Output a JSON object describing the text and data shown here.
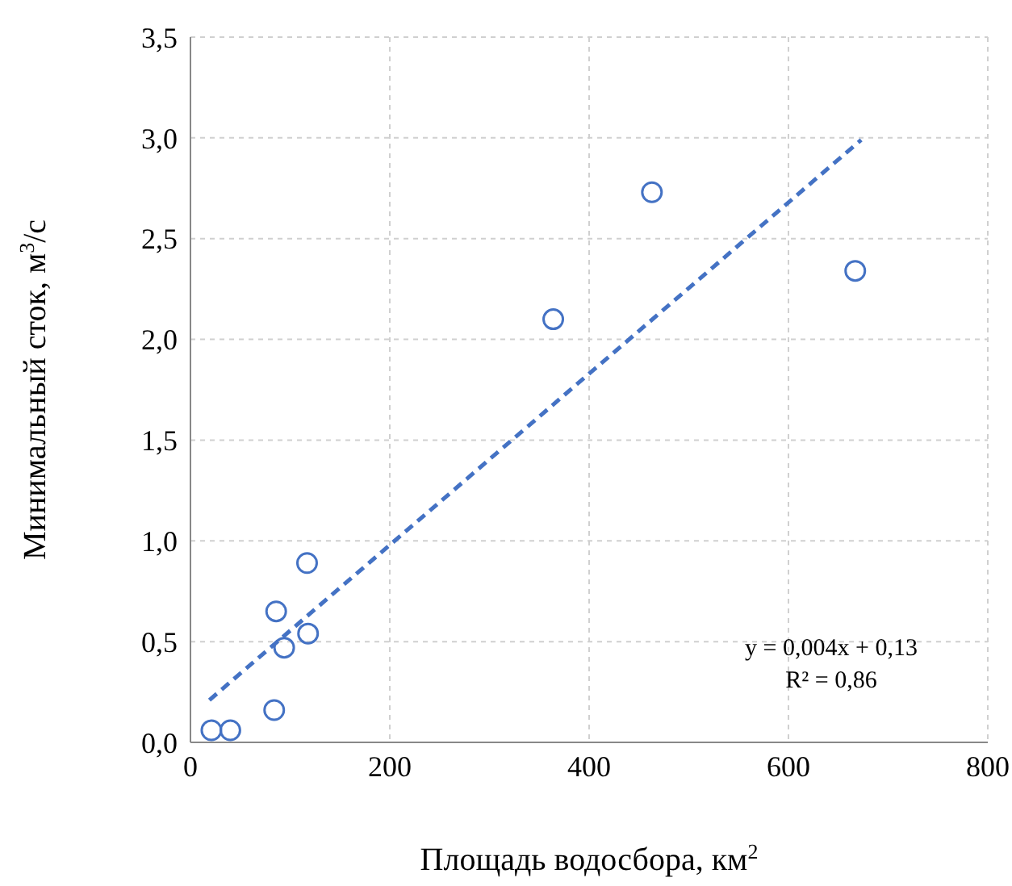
{
  "chart_data": {
    "type": "scatter",
    "xlabel": "Площадь водосбора, км$^{2}$",
    "ylabel": "Минимальный сток, м$^{3}$/с",
    "xlim": [
      0,
      800
    ],
    "xticks": [
      0,
      200,
      400,
      600,
      800
    ],
    "ylim": [
      0,
      3.5
    ],
    "yticks": [
      {
        "value": 0,
        "label": "0,0"
      },
      {
        "value": 0.5,
        "label": "0,5"
      },
      {
        "value": 1,
        "label": "1,0"
      },
      {
        "value": 1.5,
        "label": "1,5"
      },
      {
        "value": 2,
        "label": "2,0"
      },
      {
        "value": 2.5,
        "label": "2,5"
      },
      {
        "value": 3,
        "label": "3,0"
      },
      {
        "value": 3.5,
        "label": "3,5"
      }
    ],
    "grid": true,
    "series": [
      {
        "type": "scatter",
        "color": "#4472c4",
        "marker": "circle",
        "x": [
          21,
          40,
          84,
          86,
          94,
          117,
          118,
          364,
          463,
          667
        ],
        "values": [
          0.06,
          0.06,
          0.16,
          0.65,
          0.47,
          0.89,
          0.54,
          2.1,
          2.73,
          2.34
        ]
      },
      {
        "type": "line",
        "color": "#4472c4",
        "line_style": "dashed",
        "marker": "none",
        "x": [
          19,
          673
        ],
        "values": [
          0.21,
          2.99
        ]
      }
    ],
    "annotations": [
      "y = 0,004x + 0,13",
      "R² = 0,86"
    ]
  }
}
